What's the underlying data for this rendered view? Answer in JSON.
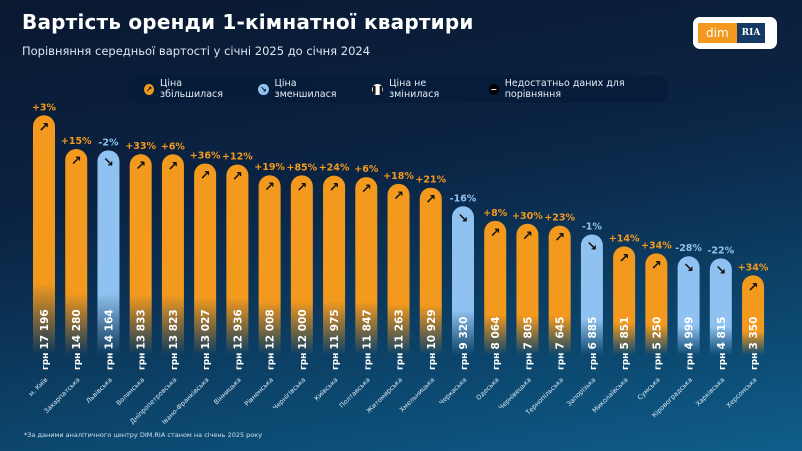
{
  "header": {
    "title": "Вартість оренди 1-кімнатної квартири",
    "subtitle": "Порівняння середньої вартості у січні 2025 до січня 2024"
  },
  "logo": {
    "left": "dim",
    "right": "RIA"
  },
  "legend": [
    {
      "label": "Ціна збільшилася",
      "icon": "arrow-up-right-icon",
      "color": "#f39a1e"
    },
    {
      "label": "Ціна зменшилася",
      "icon": "arrow-down-right-icon",
      "color": "#8fc2f0"
    },
    {
      "label": "Ціна не змінилася",
      "icon": "pause-icon",
      "color": "#ffffff"
    },
    {
      "label": "Недостатньо даних для порівняння",
      "icon": "minus-icon",
      "color": "#000000"
    }
  ],
  "footnote": "*За даними аналітичного центру DIM.RIA станом на січень 2025 року",
  "colors": {
    "up": "#f39a1e",
    "down": "#8fc2f0"
  },
  "chart_data": {
    "type": "bar",
    "title": "Вартість оренди 1-кімнатної квартири",
    "currency": "грн",
    "ylim": [
      0,
      17196
    ],
    "categories": [
      "м. Київ",
      "Закарпатська",
      "Львівська",
      "Волинська",
      "Дніпропетровська",
      "Івано-Франківська",
      "Вінницька",
      "Рівненська",
      "Чернігівська",
      "Київська",
      "Полтавська",
      "Житомирська",
      "Хмельницька",
      "Черкаська",
      "Одеська",
      "Чернівецька",
      "Тернопільська",
      "Запорізька",
      "Миколаївська",
      "Сумська",
      "Кіровоградська",
      "Харківська",
      "Херсонська"
    ],
    "values": [
      17196,
      14280,
      14164,
      13833,
      13823,
      13027,
      12936,
      12008,
      12000,
      11975,
      11847,
      11263,
      10929,
      9320,
      8064,
      7805,
      7645,
      6885,
      5851,
      5250,
      4999,
      4815,
      3350
    ],
    "value_labels": [
      "17 196",
      "14 280",
      "14 164",
      "13 833",
      "13 823",
      "13 027",
      "12 936",
      "12 008",
      "12 000",
      "11 975",
      "11 847",
      "11 263",
      "10 929",
      "9 320",
      "8 064",
      "7 805",
      "7 645",
      "6 885",
      "5 851",
      "5 250",
      "4 999",
      "4 815",
      "3 350"
    ],
    "changes": [
      "+3%",
      "+15%",
      "-2%",
      "+33%",
      "+6%",
      "+36%",
      "+12%",
      "+19%",
      "+85%",
      "+24%",
      "+6%",
      "+18%",
      "+21%",
      "-16%",
      "+8%",
      "+30%",
      "+23%",
      "-1%",
      "+14%",
      "+34%",
      "-28%",
      "-22%",
      "+34%"
    ]
  }
}
